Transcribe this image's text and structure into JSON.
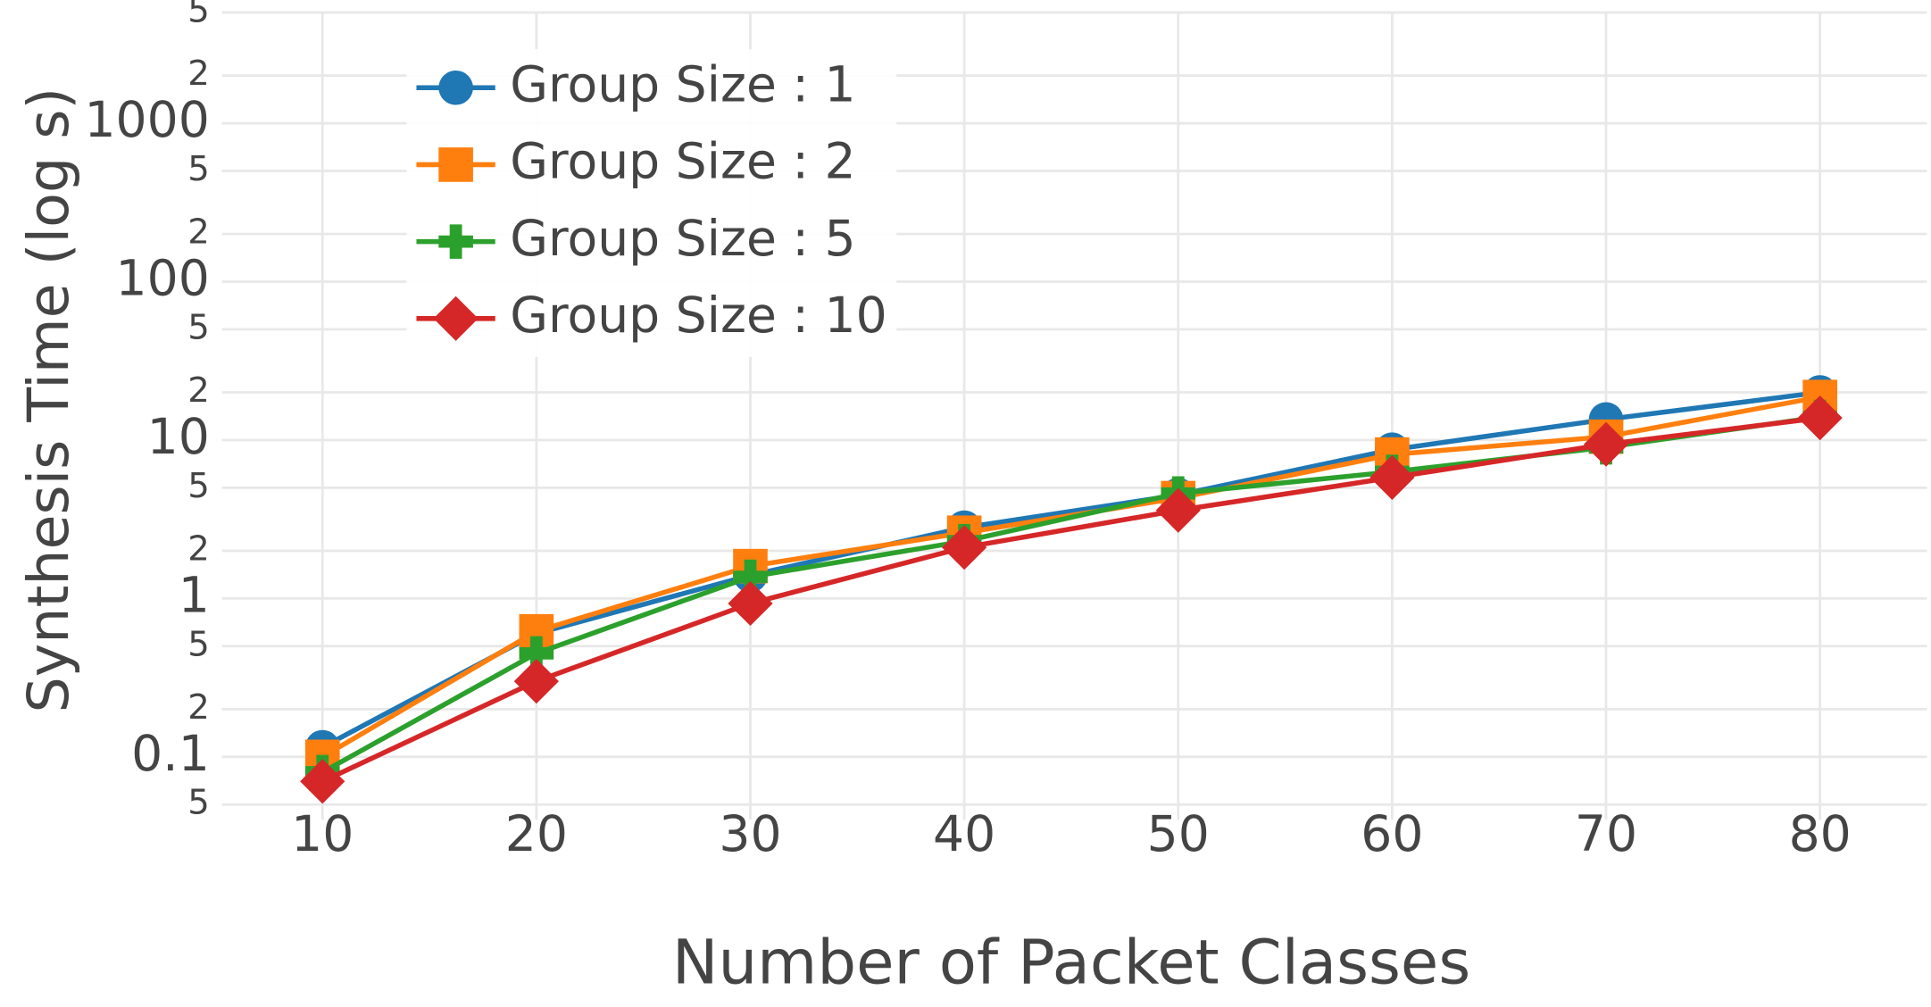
{
  "chart_data": {
    "type": "line",
    "x_label": "Number of Packet Classes",
    "y_label": "Synthesis Time (log s)",
    "x": [
      10,
      20,
      30,
      40,
      50,
      60,
      70,
      80
    ],
    "xlim": [
      5.3,
      85
    ],
    "xticks": [
      10,
      20,
      30,
      40,
      50,
      60,
      70,
      80
    ],
    "ylim": [
      0.04,
      6000
    ],
    "y_log": true,
    "yticks": [
      {
        "value": 0.05,
        "label": "5"
      },
      0.1,
      {
        "value": 0.2,
        "label": "2"
      },
      {
        "value": 0.5,
        "label": "5"
      },
      1,
      {
        "value": 2,
        "label": "2"
      },
      {
        "value": 5,
        "label": "5"
      },
      10,
      {
        "value": 20,
        "label": "2"
      },
      {
        "value": 50,
        "label": "5"
      },
      100,
      {
        "value": 200,
        "label": "2"
      },
      {
        "value": 500,
        "label": "5"
      },
      1000,
      {
        "value": 2000,
        "label": "2"
      },
      {
        "value": 5000,
        "label": "5"
      }
    ],
    "grid": true,
    "legend": "top-left",
    "series": [
      {
        "name": "Group Size : 1",
        "color": "#1f77b4",
        "marker": "circle",
        "values": [
          0.115,
          0.6,
          1.4,
          2.8,
          4.5,
          8.7,
          13.5,
          20
        ]
      },
      {
        "name": "Group Size : 2",
        "color": "#ff7f0e",
        "marker": "square",
        "values": [
          0.1,
          0.62,
          1.6,
          2.6,
          4.3,
          8.1,
          10.5,
          18.7
        ]
      },
      {
        "name": "Group Size : 5",
        "color": "#2ca02c",
        "marker": "cross",
        "values": [
          0.08,
          0.45,
          1.37,
          2.3,
          4.6,
          6.3,
          9,
          14
        ]
      },
      {
        "name": "Group Size : 10",
        "color": "#d62728",
        "marker": "diamond",
        "values": [
          0.07,
          0.3,
          0.93,
          2.1,
          3.6,
          5.8,
          9.4,
          13.8
        ]
      }
    ]
  }
}
